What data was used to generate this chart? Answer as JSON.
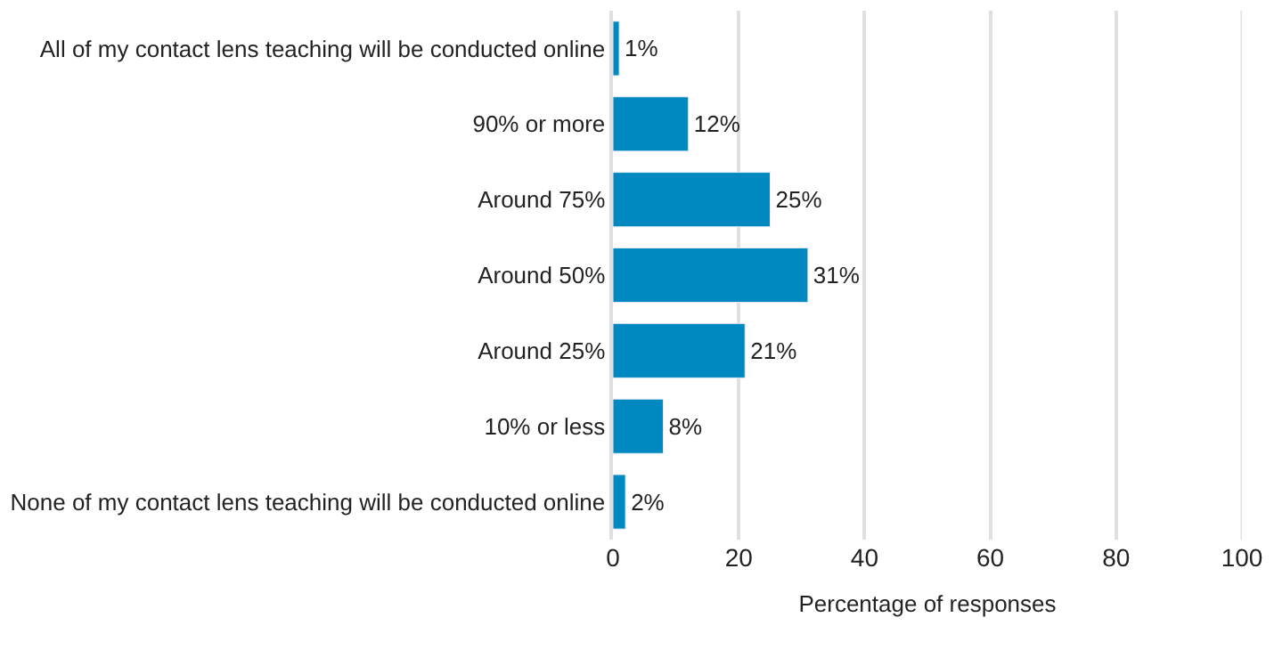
{
  "chart_data": {
    "type": "bar",
    "orientation": "horizontal",
    "xlabel": "Percentage of responses",
    "categories": [
      "All of my contact lens teaching will be conducted online",
      "90% or more",
      "Around 75%",
      "Around 50%",
      "Around 25%",
      "10% or less",
      "None of my contact lens teaching will be conducted online"
    ],
    "values": [
      1,
      12,
      25,
      31,
      21,
      8,
      2
    ],
    "value_labels": [
      "1%",
      "12%",
      "25%",
      "31%",
      "21%",
      "8%",
      "2%"
    ],
    "color": "#0088c0",
    "xlim": [
      0,
      100
    ],
    "xticks": [
      0,
      20,
      40,
      60,
      80,
      100
    ],
    "grid": "x"
  }
}
